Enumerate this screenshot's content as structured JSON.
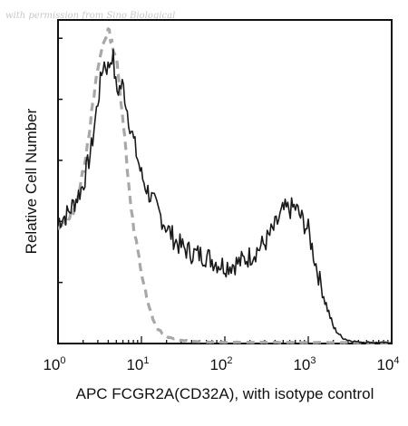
{
  "watermark": "with permission from Sino Biological",
  "chart_data": {
    "type": "line",
    "xlabel": "APC FCGR2A(CD32A), with isotype control",
    "ylabel": "Relative Cell Number",
    "xscale": "log",
    "xlim": [
      1,
      10000
    ],
    "ylim": [
      0,
      1
    ],
    "x_ticks": [
      {
        "base": "10",
        "exp": "0"
      },
      {
        "base": "10",
        "exp": "1"
      },
      {
        "base": "10",
        "exp": "2"
      },
      {
        "base": "10",
        "exp": "3"
      },
      {
        "base": "10",
        "exp": "4"
      }
    ],
    "grid": false,
    "series": [
      {
        "style": "solid",
        "color": "#1a1a1a",
        "x": [
          1,
          1.3,
          1.6,
          2,
          2.5,
          3,
          3.5,
          4,
          4.5,
          5,
          6,
          7,
          8,
          10,
          12,
          15,
          20,
          25,
          30,
          40,
          60,
          80,
          100,
          150,
          200,
          300,
          400,
          500,
          700,
          1000,
          1300,
          1600,
          2000,
          2500,
          3000,
          4000,
          6000,
          10000
        ],
        "y": [
          0.38,
          0.4,
          0.44,
          0.49,
          0.6,
          0.75,
          0.87,
          0.85,
          0.9,
          0.78,
          0.8,
          0.7,
          0.63,
          0.52,
          0.47,
          0.42,
          0.36,
          0.32,
          0.3,
          0.28,
          0.27,
          0.25,
          0.24,
          0.25,
          0.27,
          0.31,
          0.36,
          0.41,
          0.42,
          0.35,
          0.22,
          0.13,
          0.05,
          0.02,
          0.01,
          0.005,
          0.003,
          0.002
        ]
      },
      {
        "style": "dashed",
        "color": "#a8a8a8",
        "x": [
          1,
          1.3,
          1.6,
          2,
          2.5,
          3,
          3.5,
          4,
          5,
          6,
          7,
          8,
          10,
          12,
          15,
          20,
          30,
          50,
          100,
          300,
          1000,
          3000,
          10000
        ],
        "y": [
          0.35,
          0.38,
          0.42,
          0.53,
          0.7,
          0.85,
          0.93,
          0.97,
          0.88,
          0.7,
          0.5,
          0.36,
          0.22,
          0.12,
          0.05,
          0.02,
          0.01,
          0.005,
          0.004,
          0.004,
          0.003,
          0.003,
          0.002
        ]
      }
    ]
  }
}
